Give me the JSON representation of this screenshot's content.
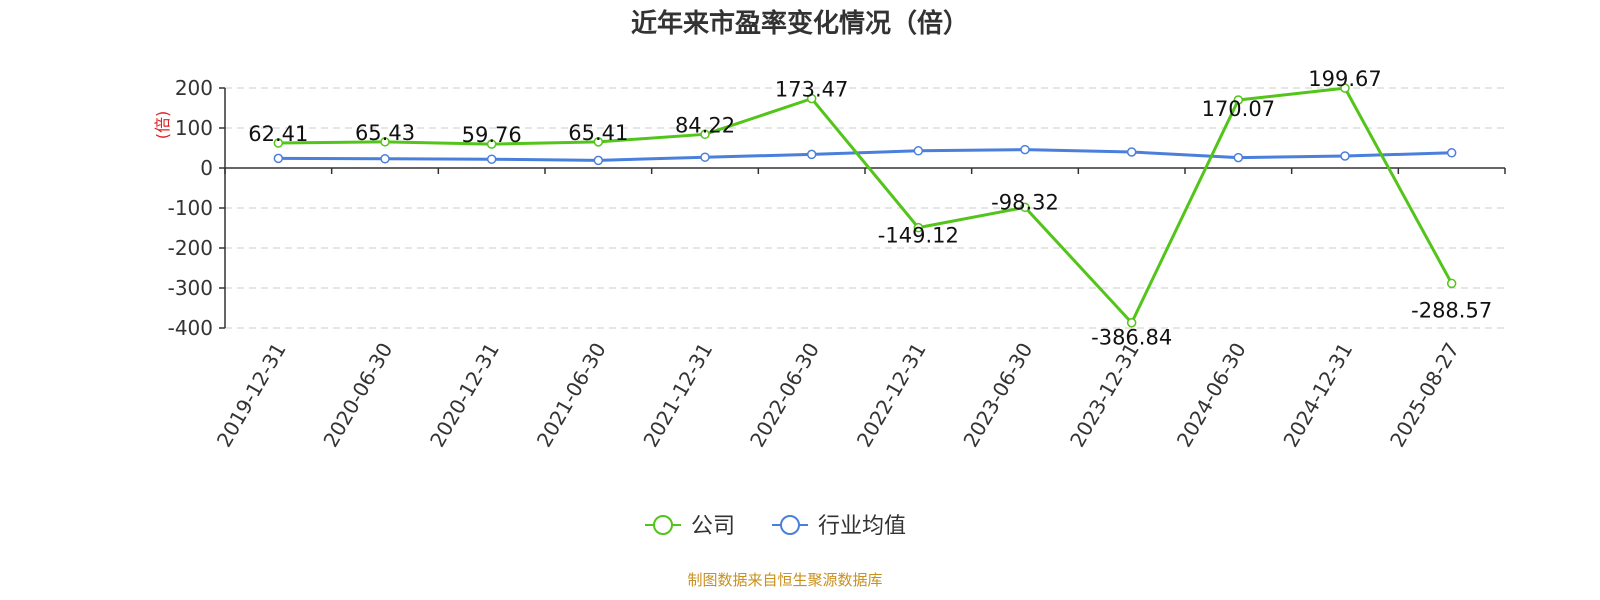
{
  "chart_data": {
    "type": "line",
    "title": "近年来市盈率变化情况（倍）",
    "ylabel": "(倍)",
    "xlabel": "",
    "ylim": [
      -400,
      200
    ],
    "yticks": [
      200,
      100,
      0,
      -100,
      -200,
      -300,
      -400
    ],
    "categories": [
      "2019-12-31",
      "2020-06-30",
      "2020-12-31",
      "2021-06-30",
      "2021-12-31",
      "2022-06-30",
      "2022-12-31",
      "2023-06-30",
      "2023-12-31",
      "2024-06-30",
      "2024-12-31",
      "2025-08-27"
    ],
    "series": [
      {
        "name": "公司",
        "color": "#52c41a",
        "values": [
          62.41,
          65.43,
          59.76,
          65.41,
          84.22,
          173.47,
          -149.12,
          -98.32,
          -386.84,
          170.07,
          199.67,
          -288.57
        ],
        "labels": [
          "62.41",
          "65.43",
          "59.76",
          "65.41",
          "84.22",
          "173.47",
          "-149.12",
          "-98.32",
          "-386.84",
          "170.07",
          "199.67",
          "-288.57"
        ]
      },
      {
        "name": "行业均值",
        "color": "#4a7fdc",
        "values": [
          24,
          23,
          22,
          19,
          27,
          34,
          43,
          46,
          40,
          26,
          30,
          38
        ]
      }
    ],
    "grid": true,
    "legend_position": "bottom-center"
  },
  "source_note": "制图数据来自恒生聚源数据库"
}
